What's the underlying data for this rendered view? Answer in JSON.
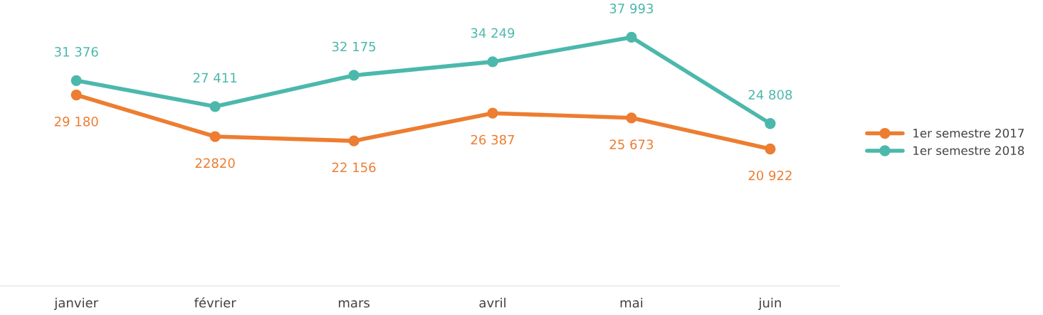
{
  "chart_data": {
    "type": "line",
    "categories": [
      "janvier",
      "février",
      "mars",
      "avril",
      "mai",
      "juin"
    ],
    "series": [
      {
        "name": "1er semestre 2017",
        "color": "#ed7d31",
        "values": [
          29180,
          22820,
          22156,
          26387,
          25673,
          20922
        ],
        "value_labels": [
          "29 180",
          "22820",
          "22 156",
          "26 387",
          "25 673",
          "20 922"
        ]
      },
      {
        "name": "1er semestre 2018",
        "color": "#4cb8ac",
        "values": [
          31376,
          27411,
          32175,
          34249,
          37993,
          24808
        ],
        "value_labels": [
          "31 376",
          "27 411",
          "32 175",
          "34 249",
          "37 993",
          "24 808"
        ]
      }
    ],
    "marker": "circle",
    "line_style": "solid",
    "legend": "right",
    "grid": false
  }
}
